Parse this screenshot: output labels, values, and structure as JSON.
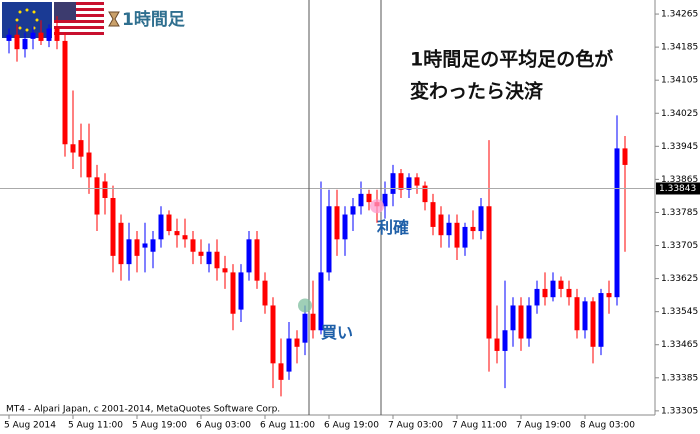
{
  "chart_data": {
    "type": "candlestick",
    "header_label": "1時間足",
    "annotation_lines": [
      "1時間足の平均足の色が",
      "変わったら決済"
    ],
    "copyright": "MT4 - Alpari Japan, c 2001-2014, MetaQuotes Software Corp.",
    "up_color": "#0000ff",
    "down_color": "#ff0000",
    "categories": [
      "5 Aug 2014",
      null,
      null,
      null,
      null,
      null,
      null,
      null,
      "5 Aug 11:00",
      null,
      null,
      null,
      null,
      null,
      null,
      null,
      "5 Aug 19:00",
      null,
      null,
      null,
      null,
      null,
      null,
      null,
      "6 Aug 03:00",
      null,
      null,
      null,
      null,
      null,
      null,
      null,
      "6 Aug 11:00",
      null,
      null,
      null,
      null,
      null,
      null,
      null,
      "6 Aug 19:00",
      null,
      null,
      null,
      null,
      null,
      null,
      null,
      "7 Aug 03:00",
      null,
      null,
      null,
      null,
      null,
      null,
      null,
      "7 Aug 11:00",
      null,
      null,
      null,
      null,
      null,
      null,
      null,
      "7 Aug 19:00",
      null,
      null,
      null,
      null,
      null,
      null,
      null,
      "8 Aug 03:00",
      null,
      null,
      null,
      null,
      null
    ],
    "open": [
      1.342,
      1.34215,
      1.3418,
      1.34205,
      1.3422,
      1.342,
      1.3423,
      1.342,
      1.3395,
      1.3396,
      1.3393,
      1.3387,
      1.3386,
      1.3382,
      1.3376,
      1.3366,
      1.3372,
      1.337,
      1.3369,
      1.3372,
      1.3378,
      1.3374,
      1.3373,
      1.3372,
      1.3369,
      1.3366,
      1.3369,
      1.3365,
      1.3364,
      1.3355,
      1.3364,
      1.3372,
      1.3362,
      1.3356,
      1.3342,
      1.334,
      1.3348,
      1.3347,
      1.3354,
      1.335,
      1.3364,
      1.338,
      1.3372,
      1.3378,
      1.338,
      1.3383,
      1.3381,
      1.338,
      1.3383,
      1.3388,
      1.3384,
      1.3387,
      1.3385,
      1.3381,
      1.3378,
      1.3373,
      1.3376,
      1.337,
      1.3375,
      1.3374,
      1.338,
      1.3348,
      1.3345,
      1.335,
      1.3356,
      1.3348,
      1.3356,
      1.336,
      1.3358,
      1.3362,
      1.336,
      1.3358,
      1.335,
      1.3357,
      1.3346,
      1.3359,
      1.3358,
      1.3394
    ],
    "high": [
      1.3423,
      1.3424,
      1.3422,
      1.34235,
      1.3425,
      1.3424,
      1.3426,
      1.3422,
      1.3408,
      1.34,
      1.34,
      1.339,
      1.3388,
      1.3385,
      1.3378,
      1.3376,
      1.3374,
      1.3376,
      1.3374,
      1.338,
      1.3379,
      1.3377,
      1.3377,
      1.3374,
      1.3372,
      1.3371,
      1.3372,
      1.3368,
      1.3366,
      1.3366,
      1.3374,
      1.3374,
      1.3364,
      1.3358,
      1.3348,
      1.3352,
      1.335,
      1.3356,
      1.3362,
      1.3386,
      1.3384,
      1.3384,
      1.338,
      1.3382,
      1.3386,
      1.3384,
      1.3384,
      1.3386,
      1.339,
      1.3389,
      1.3388,
      1.3388,
      1.3386,
      1.3383,
      1.338,
      1.3378,
      1.3378,
      1.3376,
      1.3379,
      1.3382,
      1.3396,
      1.3356,
      1.3362,
      1.3358,
      1.3358,
      1.3358,
      1.3362,
      1.3364,
      1.3364,
      1.3363,
      1.3362,
      1.336,
      1.3358,
      1.3358,
      1.336,
      1.3362,
      1.3402,
      1.3397
    ],
    "low": [
      1.3417,
      1.3415,
      1.3416,
      1.3418,
      1.3419,
      1.34185,
      1.3418,
      1.3392,
      1.3389,
      1.3387,
      1.3383,
      1.3374,
      1.3378,
      1.3364,
      1.3362,
      1.3362,
      1.3364,
      1.3364,
      1.3365,
      1.337,
      1.3373,
      1.337,
      1.337,
      1.3366,
      1.3366,
      1.3364,
      1.3362,
      1.336,
      1.335,
      1.3352,
      1.3362,
      1.336,
      1.3354,
      1.3336,
      1.3334,
      1.3338,
      1.3342,
      1.3344,
      1.3348,
      1.3349,
      1.3362,
      1.3368,
      1.3368,
      1.3374,
      1.3378,
      1.3379,
      1.3376,
      1.3377,
      1.338,
      1.3382,
      1.3382,
      1.3383,
      1.3379,
      1.3373,
      1.337,
      1.337,
      1.3367,
      1.3368,
      1.3372,
      1.3372,
      1.334,
      1.3342,
      1.3336,
      1.3346,
      1.3345,
      1.3346,
      1.3354,
      1.3356,
      1.3357,
      1.3358,
      1.3356,
      1.3348,
      1.3348,
      1.3342,
      1.3344,
      1.3354,
      1.3356,
      1.3369
    ],
    "close": [
      1.34215,
      1.3418,
      1.34205,
      1.3422,
      1.342,
      1.3423,
      1.342,
      1.3395,
      1.3393,
      1.3392,
      1.3387,
      1.3378,
      1.3382,
      1.3368,
      1.3366,
      1.3372,
      1.3368,
      1.3371,
      1.3372,
      1.3378,
      1.3374,
      1.3373,
      1.3372,
      1.3369,
      1.3368,
      1.3369,
      1.3365,
      1.3364,
      1.3354,
      1.3364,
      1.3372,
      1.3362,
      1.3356,
      1.3342,
      1.3338,
      1.3348,
      1.3346,
      1.3354,
      1.335,
      1.3364,
      1.338,
      1.3372,
      1.3378,
      1.338,
      1.3383,
      1.3381,
      1.338,
      1.3383,
      1.3388,
      1.3384,
      1.3387,
      1.3385,
      1.3381,
      1.3375,
      1.3373,
      1.3376,
      1.337,
      1.3375,
      1.3374,
      1.338,
      1.3348,
      1.3345,
      1.335,
      1.3356,
      1.3348,
      1.3356,
      1.336,
      1.3358,
      1.3362,
      1.336,
      1.3358,
      1.335,
      1.3357,
      1.3346,
      1.3359,
      1.3358,
      1.3394,
      1.339
    ],
    "markers": [
      {
        "label": "買い",
        "index": 37,
        "price": 1.3356,
        "color": "#7fbf9f"
      },
      {
        "label": "利確",
        "index": 46,
        "price": 1.338,
        "color": "#ff99cc"
      }
    ],
    "last_price": 1.33843,
    "ylim": [
      1.33295,
      1.34299
    ],
    "yticks": [
      1.34265,
      1.34185,
      1.34105,
      1.34025,
      1.33945,
      1.33865,
      1.33785,
      1.33705,
      1.33625,
      1.33545,
      1.33465,
      1.33385,
      1.33305
    ]
  }
}
